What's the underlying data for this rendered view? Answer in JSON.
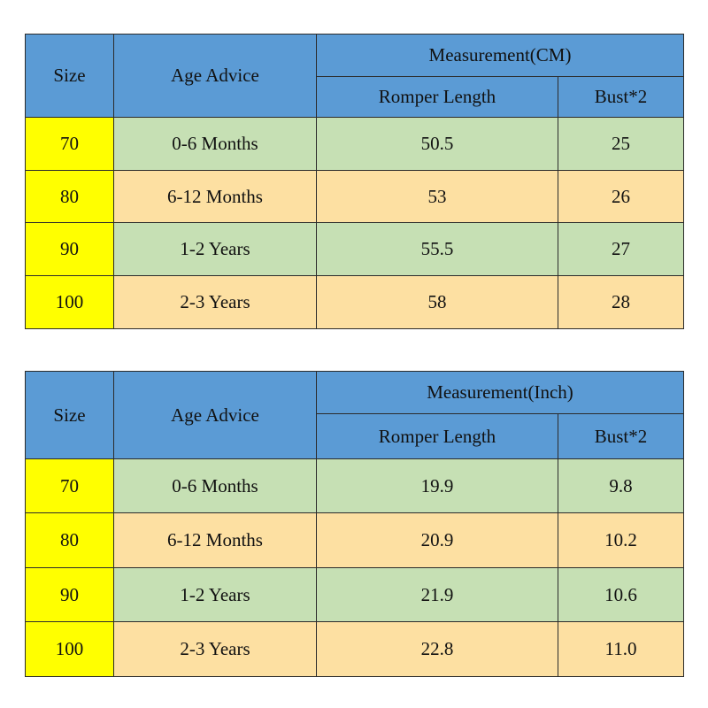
{
  "tables": [
    {
      "header": {
        "size": "Size",
        "age": "Age Advice",
        "measurement": "Measurement(CM)",
        "length": "Romper Length",
        "bust": "Bust*2"
      },
      "rows": [
        [
          "70",
          "0-6 Months",
          "50.5",
          "25"
        ],
        [
          "80",
          "6-12 Months",
          "53",
          "26"
        ],
        [
          "90",
          "1-2 Years",
          "55.5",
          "27"
        ],
        [
          "100",
          "2-3 Years",
          "58",
          "28"
        ]
      ]
    },
    {
      "header": {
        "size": "Size",
        "age": "Age Advice",
        "measurement": "Measurement(Inch)",
        "length": "Romper Length",
        "bust": "Bust*2"
      },
      "rows": [
        [
          "70",
          "0-6 Months",
          "19.9",
          "9.8"
        ],
        [
          "80",
          "6-12 Months",
          "20.9",
          "10.2"
        ],
        [
          "90",
          "1-2 Years",
          "21.9",
          "10.6"
        ],
        [
          "100",
          "2-3 Years",
          "22.8",
          "11.0"
        ]
      ]
    }
  ]
}
